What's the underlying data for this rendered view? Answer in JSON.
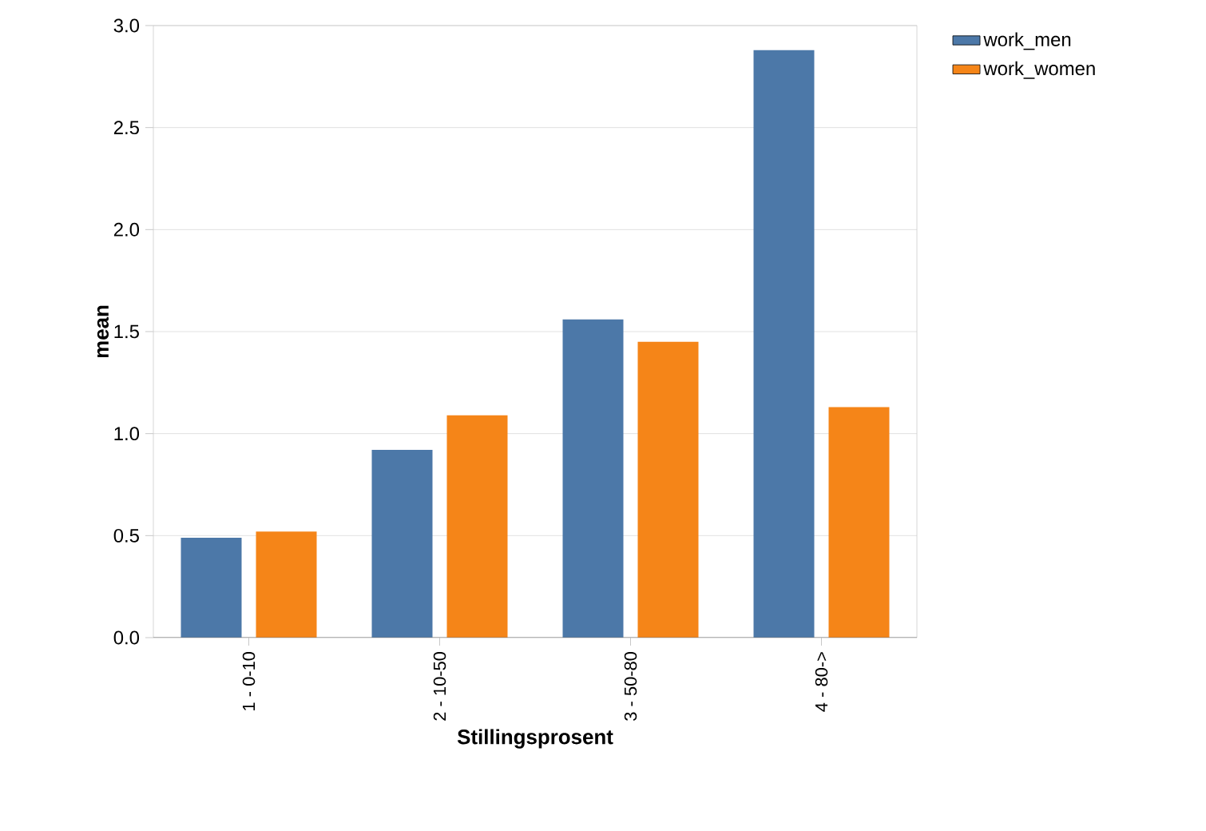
{
  "chart_data": {
    "type": "bar",
    "xlabel": "Stillingsprosent",
    "ylabel": "mean",
    "categories": [
      "1 - 0-10",
      "2 - 10-50",
      "3 - 50-80",
      "4 - 80->"
    ],
    "series": [
      {
        "name": "work_men",
        "color": "#4c78a8",
        "values": [
          0.49,
          0.92,
          1.56,
          2.88
        ]
      },
      {
        "name": "work_women",
        "color": "#f58518",
        "values": [
          0.52,
          1.09,
          1.45,
          1.13
        ]
      }
    ],
    "ylim": [
      0,
      3
    ],
    "yticks": [
      {
        "value": 0,
        "label": "0.0"
      },
      {
        "value": 0.5,
        "label": "0.5"
      },
      {
        "value": 1,
        "label": "1.0"
      },
      {
        "value": 1.5,
        "label": "1.5"
      },
      {
        "value": 2,
        "label": "2.0"
      },
      {
        "value": 2.5,
        "label": "2.5"
      },
      {
        "value": 3,
        "label": "3.0"
      }
    ],
    "grid": "y",
    "legend": "top right"
  }
}
